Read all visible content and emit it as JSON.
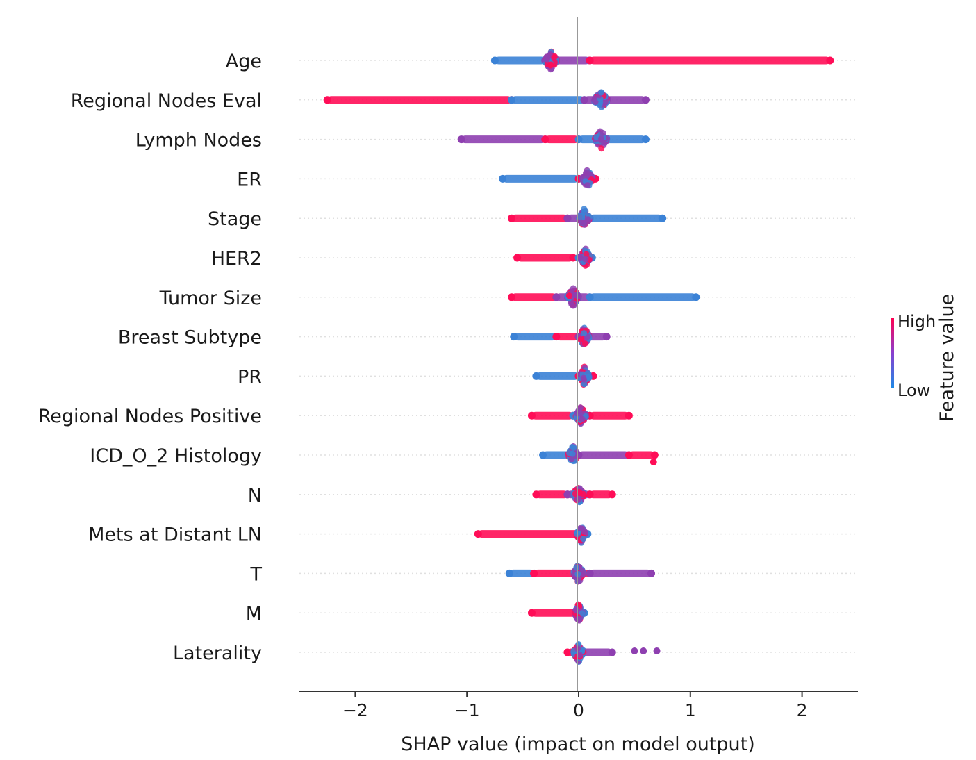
{
  "chart_data": {
    "type": "scatter",
    "subtype": "shap-beeswarm",
    "xlabel": "SHAP value (impact on model output)",
    "ylabel": "",
    "xlim": [
      -2.5,
      2.5
    ],
    "xticks": [
      -2,
      -1,
      0,
      1,
      2
    ],
    "xtick_labels": [
      "−2",
      "−1",
      "0",
      "1",
      "2"
    ],
    "grid": false,
    "colorbar": {
      "title": "Feature value",
      "high_label": "High",
      "low_label": "Low",
      "high_color": "#ff0052",
      "low_color": "#1e88e5"
    },
    "features": [
      {
        "name": "Age",
        "segments": [
          [
            -0.75,
            -0.3,
            "low"
          ],
          [
            -0.3,
            0.1,
            "mix"
          ],
          [
            0.1,
            2.25,
            "high"
          ]
        ],
        "cluster": [
          -0.25,
          0.35
        ]
      },
      {
        "name": "Regional Nodes Eval",
        "segments": [
          [
            -2.25,
            -0.6,
            "high"
          ],
          [
            -0.6,
            0.05,
            "low"
          ],
          [
            0.05,
            0.6,
            "mix"
          ]
        ],
        "cluster": [
          0.2,
          0.4
        ]
      },
      {
        "name": "Lymph Nodes",
        "segments": [
          [
            -1.05,
            -0.3,
            "mix"
          ],
          [
            -0.3,
            0.0,
            "high"
          ],
          [
            0.0,
            0.6,
            "low"
          ]
        ],
        "cluster": [
          0.2,
          0.35
        ]
      },
      {
        "name": "ER",
        "segments": [
          [
            -0.68,
            0.0,
            "low"
          ],
          [
            0.0,
            0.15,
            "high"
          ]
        ],
        "cluster": [
          0.08,
          0.3
        ]
      },
      {
        "name": "Stage",
        "segments": [
          [
            -0.6,
            -0.1,
            "high"
          ],
          [
            -0.1,
            0.1,
            "mix"
          ],
          [
            0.1,
            0.75,
            "low"
          ]
        ],
        "cluster": [
          0.05,
          0.3
        ]
      },
      {
        "name": "HER2",
        "segments": [
          [
            -0.55,
            -0.05,
            "high"
          ],
          [
            0.0,
            0.12,
            "low"
          ]
        ],
        "cluster": [
          0.06,
          0.3
        ]
      },
      {
        "name": "Tumor Size",
        "segments": [
          [
            -0.6,
            -0.2,
            "high"
          ],
          [
            -0.2,
            0.1,
            "mix"
          ],
          [
            0.1,
            1.05,
            "low"
          ]
        ],
        "cluster": [
          -0.05,
          0.35
        ]
      },
      {
        "name": "Breast Subtype",
        "segments": [
          [
            -0.58,
            -0.2,
            "low"
          ],
          [
            -0.2,
            0.0,
            "high"
          ],
          [
            0.0,
            0.25,
            "mix"
          ]
        ],
        "cluster": [
          0.05,
          0.3
        ]
      },
      {
        "name": "PR",
        "segments": [
          [
            -0.38,
            0.0,
            "low"
          ],
          [
            0.0,
            0.13,
            "high"
          ]
        ],
        "cluster": [
          0.05,
          0.3
        ]
      },
      {
        "name": "Regional Nodes Positive",
        "segments": [
          [
            -0.42,
            -0.05,
            "high"
          ],
          [
            -0.05,
            0.1,
            "low"
          ],
          [
            0.1,
            0.45,
            "high"
          ]
        ],
        "cluster": [
          0.02,
          0.3
        ]
      },
      {
        "name": "ICD_O_2 Histology",
        "segments": [
          [
            -0.32,
            0.0,
            "low"
          ],
          [
            0.0,
            0.45,
            "mix"
          ],
          [
            0.45,
            0.68,
            "high"
          ]
        ],
        "cluster": [
          -0.05,
          0.28
        ]
      },
      {
        "name": "N",
        "segments": [
          [
            -0.38,
            -0.1,
            "high"
          ],
          [
            -0.1,
            0.1,
            "mix"
          ],
          [
            0.1,
            0.3,
            "high"
          ]
        ],
        "cluster": [
          0.0,
          0.3
        ]
      },
      {
        "name": "Mets at Distant LN",
        "segments": [
          [
            -0.9,
            0.0,
            "high"
          ],
          [
            0.0,
            0.08,
            "low"
          ]
        ],
        "cluster": [
          0.02,
          0.25
        ]
      },
      {
        "name": "T",
        "segments": [
          [
            -0.62,
            -0.4,
            "low"
          ],
          [
            -0.4,
            0.1,
            "high"
          ],
          [
            0.1,
            0.65,
            "mix"
          ]
        ],
        "cluster": [
          0.0,
          0.3
        ]
      },
      {
        "name": "M",
        "segments": [
          [
            -0.42,
            0.0,
            "high"
          ],
          [
            0.0,
            0.05,
            "low"
          ]
        ],
        "cluster": [
          0.0,
          0.22
        ]
      },
      {
        "name": "Laterality",
        "segments": [
          [
            -0.1,
            0.0,
            "high"
          ],
          [
            0.0,
            0.3,
            "mix"
          ]
        ],
        "cluster": [
          0.0,
          0.3
        ],
        "outliers": [
          0.5,
          0.58,
          0.7
        ]
      }
    ]
  }
}
